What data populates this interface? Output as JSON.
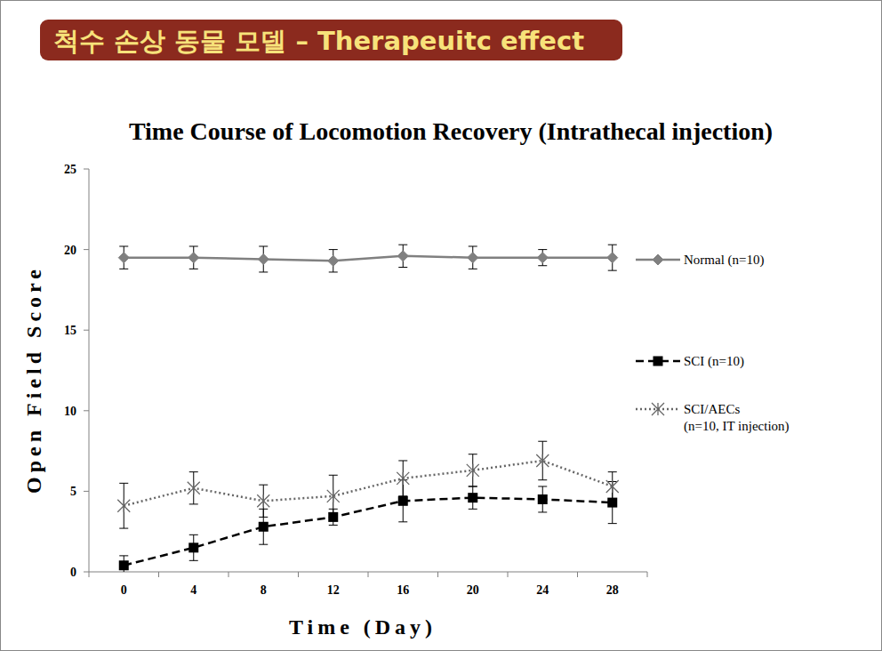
{
  "header": {
    "banner": "척수 손상 동물 모델 – Therapeuitc effect"
  },
  "chart_data": {
    "type": "line",
    "title": "Time Course of Locomotion Recovery (Intrathecal injection)",
    "x_label": "Time (Day)",
    "y_label": "Open Field Score",
    "categories": [
      "0",
      "4",
      "8",
      "12",
      "16",
      "20",
      "24",
      "28"
    ],
    "ylim": [
      0,
      25
    ],
    "yticks": [
      0,
      5,
      10,
      15,
      20,
      25
    ],
    "grid": false,
    "legend": "right",
    "series": [
      {
        "name": "Normal (n=10)",
        "color": "#808080",
        "marker": "diamond",
        "line_style": "solid",
        "values": [
          19.5,
          19.5,
          19.4,
          19.3,
          19.6,
          19.5,
          19.5,
          19.5
        ],
        "errors": [
          0.7,
          0.7,
          0.8,
          0.7,
          0.7,
          0.7,
          0.5,
          0.8
        ]
      },
      {
        "name": "SCI (n=10)",
        "color": "#000000",
        "marker": "square",
        "line_style": "dashed",
        "values": [
          0.4,
          1.5,
          2.8,
          3.4,
          4.4,
          4.6,
          4.5,
          4.3
        ],
        "errors": [
          0.6,
          0.8,
          1.1,
          0.5,
          1.3,
          0.7,
          0.8,
          1.3
        ]
      },
      {
        "name": "SCI/AECs (n=10, IT injection)",
        "color": "#666666",
        "marker": "asterisk",
        "line_style": "dotted",
        "values": [
          4.1,
          5.2,
          4.4,
          4.7,
          5.8,
          6.3,
          6.9,
          5.3
        ],
        "errors": [
          1.4,
          1.0,
          1.0,
          1.3,
          1.1,
          1.0,
          1.2,
          0.9
        ]
      }
    ]
  }
}
